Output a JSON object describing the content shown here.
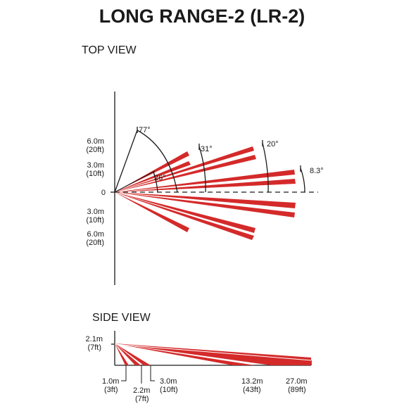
{
  "title": "LONG RANGE-2 (LR-2)",
  "top_view": {
    "heading": "TOP VIEW",
    "y_labels": [
      {
        "line1": "6.0m",
        "line2": "(20ft)"
      },
      {
        "line1": "3.0m",
        "line2": "(10ft)"
      },
      {
        "line1": "0",
        "line2": ""
      },
      {
        "line1": "3.0m",
        "line2": "(10ft)"
      },
      {
        "line1": "6.0m",
        "line2": "(20ft)"
      }
    ],
    "angles": [
      "77°",
      "31°",
      "20°",
      "8.3°",
      "26°"
    ]
  },
  "side_view": {
    "heading": "SIDE VIEW",
    "height_label": {
      "line1": "2.1m",
      "line2": "(7ft)"
    },
    "distance_labels": [
      {
        "line1": "1.0m",
        "line2": "(3ft)"
      },
      {
        "line1": "2.2m",
        "line2": "(7ft)"
      },
      {
        "line1": "3.0m",
        "line2": "(10ft)"
      },
      {
        "line1": "13.2m",
        "line2": "(43ft)"
      },
      {
        "line1": "27.0m",
        "line2": "(89ft)"
      }
    ]
  },
  "colors": {
    "beam": "#d42a2a",
    "line": "#1a1a1a",
    "background": "#ffffff"
  }
}
